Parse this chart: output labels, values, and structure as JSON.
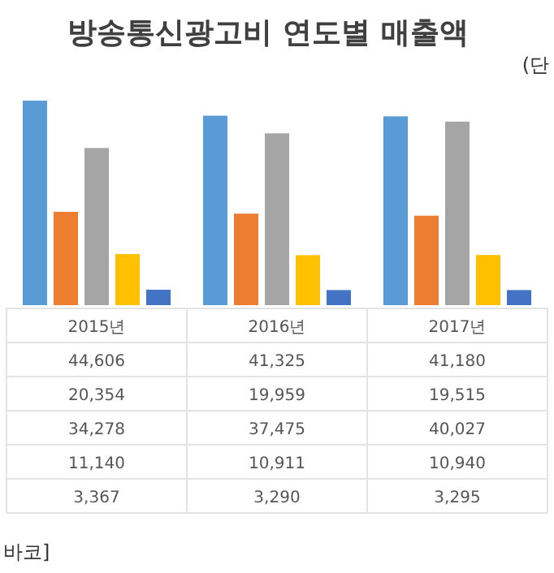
{
  "chart_data": {
    "type": "bar",
    "title": "방송통신광고비 연도별 매출액",
    "annotations": [
      "(단",
      "바코]"
    ],
    "categories": [
      "2015년",
      "2016년",
      "2017년"
    ],
    "series": [
      {
        "color": "#5b9bd5",
        "values": [
          44606,
          41325,
          41180
        ],
        "value_labels": [
          "44,606",
          "41,325",
          "41,180"
        ]
      },
      {
        "color": "#ed7d31",
        "values": [
          20354,
          19959,
          19515
        ],
        "value_labels": [
          "20,354",
          "19,959",
          "19,515"
        ]
      },
      {
        "color": "#a5a5a5",
        "values": [
          34278,
          37475,
          40027
        ],
        "value_labels": [
          "34,278",
          "37,475",
          "40,027"
        ]
      },
      {
        "color": "#ffc000",
        "values": [
          11140,
          10911,
          10940
        ],
        "value_labels": [
          "11,140",
          "10,911",
          "10,940"
        ]
      },
      {
        "color": "#4472c4",
        "values": [
          3367,
          3290,
          3295
        ],
        "value_labels": [
          "3,367",
          "3,290",
          "3,295"
        ]
      }
    ],
    "tick_labels": "x"
  }
}
